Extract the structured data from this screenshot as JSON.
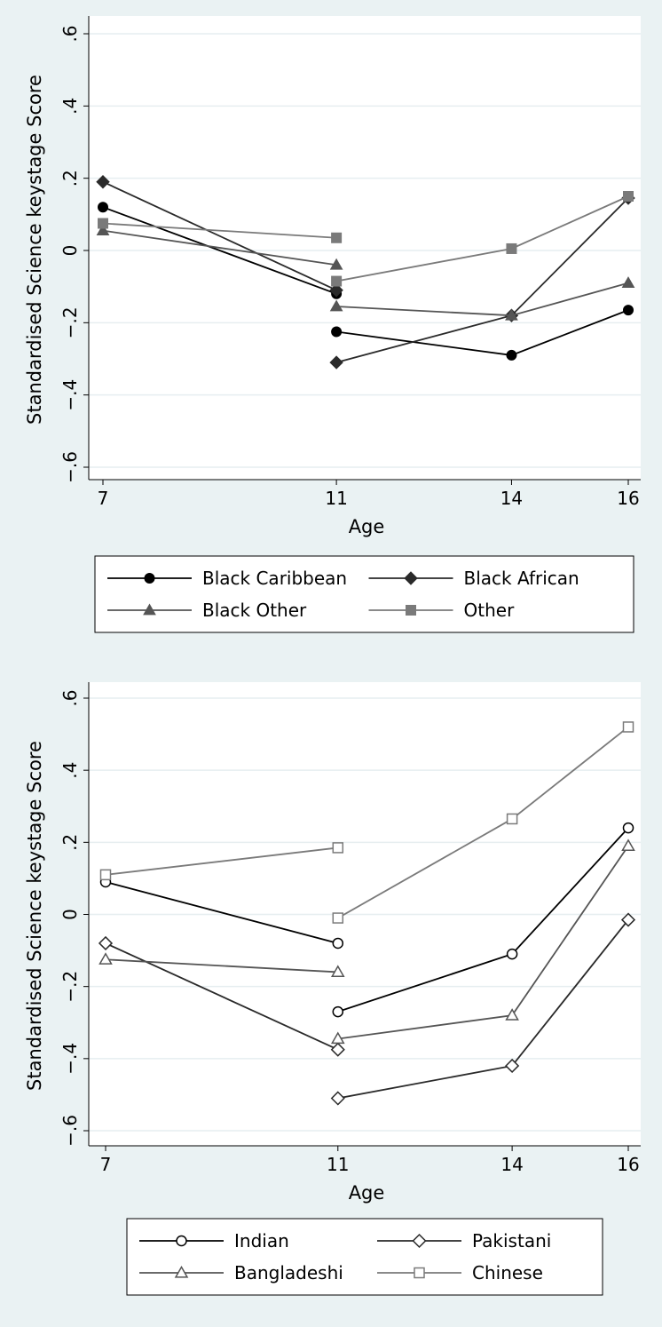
{
  "chart_data": [
    {
      "type": "line",
      "xlabel": "Age",
      "ylabel": "Standardised Science keystage Score",
      "x_ticks": [
        7,
        11,
        14,
        16
      ],
      "y_ticks": [
        -0.6,
        -0.4,
        -0.2,
        0,
        0.2,
        0.4,
        0.6
      ],
      "y_tick_labels": [
        "−.6",
        "−.4",
        "−.2",
        "0",
        ".2",
        ".4",
        ".6"
      ],
      "xlim": [
        7,
        16
      ],
      "ylim": [
        -0.6,
        0.6
      ],
      "grid": "horizontal",
      "legend_position": "bottom",
      "series": [
        {
          "name": "Black Caribbean",
          "marker": "circle",
          "filled": true,
          "color": "#000000",
          "segments": [
            [
              [
                7,
                0.12
              ],
              [
                11,
                -0.12
              ]
            ],
            [
              [
                11,
                -0.225
              ],
              [
                14,
                -0.29
              ],
              [
                16,
                -0.165
              ]
            ]
          ]
        },
        {
          "name": "Black African",
          "marker": "diamond",
          "filled": true,
          "color": "#2a2a2a",
          "segments": [
            [
              [
                7,
                0.19
              ],
              [
                11,
                -0.11
              ]
            ],
            [
              [
                11,
                -0.31
              ],
              [
                14,
                -0.18
              ],
              [
                16,
                0.145
              ]
            ]
          ]
        },
        {
          "name": "Black Other",
          "marker": "triangle",
          "filled": true,
          "color": "#555555",
          "segments": [
            [
              [
                7,
                0.055
              ],
              [
                11,
                -0.04
              ]
            ],
            [
              [
                11,
                -0.155
              ],
              [
                14,
                -0.18
              ],
              [
                16,
                -0.09
              ]
            ]
          ]
        },
        {
          "name": "Other",
          "marker": "square",
          "filled": true,
          "color": "#7a7a7a",
          "segments": [
            [
              [
                7,
                0.075
              ],
              [
                11,
                0.035
              ]
            ],
            [
              [
                11,
                -0.085
              ],
              [
                14,
                0.005
              ],
              [
                16,
                0.15
              ]
            ]
          ]
        }
      ]
    },
    {
      "type": "line",
      "xlabel": "Age",
      "ylabel": "Standardised Science keystage Score",
      "x_ticks": [
        7,
        11,
        14,
        16
      ],
      "y_ticks": [
        -0.6,
        -0.4,
        -0.2,
        0,
        0.2,
        0.4,
        0.6
      ],
      "y_tick_labels": [
        "−.6",
        "−.4",
        "−.2",
        "0",
        ".2",
        ".4",
        ".6"
      ],
      "xlim": [
        7,
        16
      ],
      "ylim": [
        -0.6,
        0.6
      ],
      "grid": "horizontal",
      "legend_position": "bottom",
      "series": [
        {
          "name": "Indian",
          "marker": "circle",
          "filled": false,
          "color": "#000000",
          "segments": [
            [
              [
                7,
                0.09
              ],
              [
                11,
                -0.08
              ]
            ],
            [
              [
                11,
                -0.27
              ],
              [
                14,
                -0.11
              ],
              [
                16,
                0.24
              ]
            ]
          ]
        },
        {
          "name": "Pakistani",
          "marker": "diamond",
          "filled": false,
          "color": "#2a2a2a",
          "segments": [
            [
              [
                7,
                -0.08
              ],
              [
                11,
                -0.375
              ]
            ],
            [
              [
                11,
                -0.51
              ],
              [
                14,
                -0.42
              ],
              [
                16,
                -0.015
              ]
            ]
          ]
        },
        {
          "name": "Bangladeshi",
          "marker": "triangle",
          "filled": false,
          "color": "#555555",
          "segments": [
            [
              [
                7,
                -0.125
              ],
              [
                11,
                -0.16
              ]
            ],
            [
              [
                11,
                -0.345
              ],
              [
                14,
                -0.28
              ],
              [
                16,
                0.19
              ]
            ]
          ]
        },
        {
          "name": "Chinese",
          "marker": "square",
          "filled": false,
          "color": "#7a7a7a",
          "segments": [
            [
              [
                7,
                0.11
              ],
              [
                11,
                0.185
              ]
            ],
            [
              [
                11,
                -0.01
              ],
              [
                14,
                0.265
              ],
              [
                16,
                0.52
              ]
            ]
          ]
        }
      ]
    }
  ]
}
